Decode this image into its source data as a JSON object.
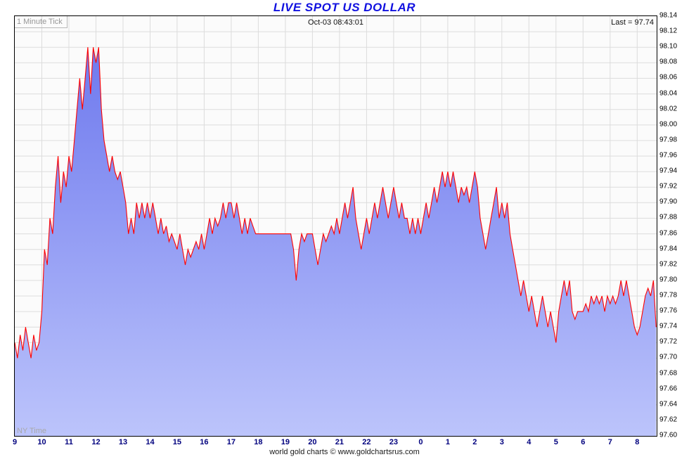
{
  "header": {
    "tick_label": "1 Minute Tick",
    "timestamp": "Oct-03 08:43:01",
    "last_label": "Last = 97.74"
  },
  "footer": {
    "ny_time": "NY Time",
    "credit": "world gold charts © www.goldchartsrus.com"
  },
  "chart_data": {
    "type": "area",
    "title": "LIVE SPOT US DOLLAR",
    "xlabel": "",
    "ylabel": "",
    "legend": "none",
    "grid": true,
    "last_value": 97.74,
    "ylim": [
      97.6,
      98.14
    ],
    "y_tick_step": 0.02,
    "y_ticks": [
      "98.14",
      "98.12",
      "98.10",
      "98.08",
      "98.06",
      "98.04",
      "98.02",
      "98.00",
      "97.98",
      "97.96",
      "97.94",
      "97.92",
      "97.90",
      "97.88",
      "97.86",
      "97.84",
      "97.82",
      "97.80",
      "97.78",
      "97.76",
      "97.74",
      "97.72",
      "97.70",
      "97.68",
      "97.66",
      "97.64",
      "97.62",
      "97.60"
    ],
    "x_tick_labels": [
      "9",
      "10",
      "11",
      "12",
      "13",
      "14",
      "15",
      "16",
      "17",
      "18",
      "19",
      "20",
      "21",
      "22",
      "23",
      "0",
      "1",
      "2",
      "3",
      "4",
      "5",
      "6",
      "7",
      "8"
    ],
    "x_tick_positions_hours": [
      0,
      1,
      2,
      3,
      4,
      5,
      6,
      7,
      8,
      9,
      10,
      11,
      12,
      13,
      14,
      15,
      16,
      17,
      18,
      19,
      20,
      21,
      22,
      23
    ],
    "x_hours_span": 23.72,
    "dt_hours": 0.1,
    "values": [
      97.72,
      97.7,
      97.73,
      97.71,
      97.74,
      97.72,
      97.7,
      97.73,
      97.71,
      97.72,
      97.76,
      97.84,
      97.82,
      97.88,
      97.86,
      97.92,
      97.96,
      97.9,
      97.94,
      97.92,
      97.96,
      97.94,
      97.98,
      98.02,
      98.06,
      98.02,
      98.06,
      98.1,
      98.04,
      98.1,
      98.08,
      98.1,
      98.02,
      97.98,
      97.96,
      97.94,
      97.96,
      97.94,
      97.93,
      97.94,
      97.92,
      97.9,
      97.86,
      97.88,
      97.86,
      97.9,
      97.88,
      97.9,
      97.88,
      97.9,
      97.88,
      97.9,
      97.88,
      97.86,
      97.88,
      97.86,
      97.87,
      97.85,
      97.86,
      97.85,
      97.84,
      97.86,
      97.84,
      97.82,
      97.84,
      97.83,
      97.84,
      97.85,
      97.84,
      97.86,
      97.84,
      97.86,
      97.88,
      97.86,
      97.88,
      97.87,
      97.88,
      97.9,
      97.88,
      97.9,
      97.9,
      97.88,
      97.9,
      97.88,
      97.86,
      97.88,
      97.86,
      97.88,
      97.87,
      97.86,
      97.86,
      97.86,
      97.86,
      97.86,
      97.86,
      97.86,
      97.86,
      97.86,
      97.86,
      97.86,
      97.86,
      97.86,
      97.86,
      97.84,
      97.8,
      97.84,
      97.86,
      97.85,
      97.86,
      97.86,
      97.86,
      97.84,
      97.82,
      97.84,
      97.86,
      97.85,
      97.86,
      97.87,
      97.86,
      97.88,
      97.86,
      97.88,
      97.9,
      97.88,
      97.9,
      97.92,
      97.88,
      97.86,
      97.84,
      97.86,
      97.88,
      97.86,
      97.88,
      97.9,
      97.88,
      97.9,
      97.92,
      97.9,
      97.88,
      97.9,
      97.92,
      97.9,
      97.88,
      97.9,
      97.88,
      97.88,
      97.86,
      97.88,
      97.86,
      97.88,
      97.86,
      97.88,
      97.9,
      97.88,
      97.9,
      97.92,
      97.9,
      97.92,
      97.94,
      97.92,
      97.94,
      97.92,
      97.94,
      97.92,
      97.9,
      97.92,
      97.91,
      97.92,
      97.9,
      97.92,
      97.94,
      97.92,
      97.88,
      97.86,
      97.84,
      97.86,
      97.88,
      97.9,
      97.92,
      97.88,
      97.9,
      97.88,
      97.9,
      97.86,
      97.84,
      97.82,
      97.8,
      97.78,
      97.8,
      97.78,
      97.76,
      97.78,
      97.76,
      97.74,
      97.76,
      97.78,
      97.76,
      97.74,
      97.76,
      97.74,
      97.72,
      97.76,
      97.78,
      97.8,
      97.78,
      97.8,
      97.76,
      97.75,
      97.76,
      97.76,
      97.76,
      97.77,
      97.76,
      97.78,
      97.77,
      97.78,
      97.77,
      97.78,
      97.76,
      97.78,
      97.77,
      97.78,
      97.77,
      97.78,
      97.8,
      97.78,
      97.8,
      97.78,
      97.76,
      97.74,
      97.73,
      97.74,
      97.76,
      97.78,
      97.79,
      97.78,
      97.8,
      97.74
    ],
    "colors": {
      "line": "#ff0000",
      "fill_top": "#6e79ee",
      "fill_bottom": "#bcc4fb",
      "grid": "#dcdcdc",
      "title": "#1212e0",
      "x_label": "#00007e"
    }
  }
}
